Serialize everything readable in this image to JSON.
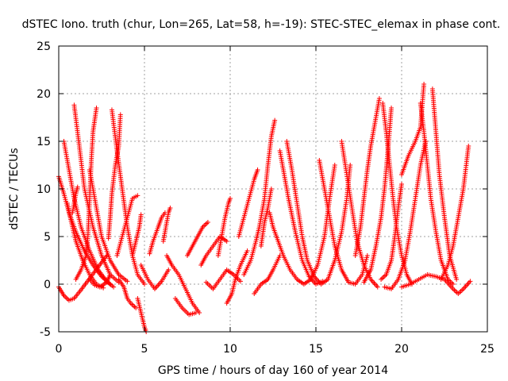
{
  "chart_data": {
    "type": "scatter",
    "title": "dSTEC Iono. truth (chur, Lon=265, Lat=58, h=-19): STEC-STEC_elemax in phase cont.",
    "xlabel": "GPS time / hours of day 160 of year 2014",
    "ylabel": "dSTEC  / TECUs",
    "xlim": [
      0,
      25
    ],
    "ylim": [
      -5,
      25
    ],
    "xticks": [
      0,
      5,
      10,
      15,
      20,
      25
    ],
    "yticks": [
      -5,
      0,
      5,
      10,
      15,
      20,
      25
    ],
    "x_tick_labels": [
      "0",
      "5",
      "10",
      "15",
      "20",
      "25"
    ],
    "y_tick_labels": [
      "-5",
      "0",
      "5",
      "10",
      "15",
      "20",
      "25"
    ],
    "grid": true,
    "marker": "+",
    "color": "#ff0000",
    "arcs": [
      [
        [
          0.0,
          11.3
        ],
        [
          0.3,
          9.5
        ],
        [
          0.6,
          7.5
        ],
        [
          1.0,
          5.5
        ],
        [
          1.5,
          3.5
        ],
        [
          2.0,
          2.0
        ],
        [
          2.5,
          0.8
        ],
        [
          3.0,
          0.0
        ]
      ],
      [
        [
          0.0,
          -0.3
        ],
        [
          0.3,
          -1.2
        ],
        [
          0.6,
          -1.7
        ],
        [
          0.9,
          -1.5
        ],
        [
          1.3,
          -0.6
        ],
        [
          1.8,
          0.6
        ],
        [
          2.3,
          1.8
        ],
        [
          2.8,
          3.0
        ]
      ],
      [
        [
          0.3,
          15.0
        ],
        [
          0.5,
          13.0
        ],
        [
          0.9,
          9.0
        ],
        [
          1.3,
          6.0
        ],
        [
          1.8,
          3.5
        ],
        [
          2.3,
          1.5
        ],
        [
          2.8,
          0.3
        ],
        [
          3.2,
          -0.3
        ]
      ],
      [
        [
          0.9,
          18.8
        ],
        [
          1.2,
          14.5
        ],
        [
          1.5,
          10.0
        ],
        [
          2.0,
          6.0
        ],
        [
          2.5,
          3.0
        ],
        [
          3.0,
          1.0
        ],
        [
          3.5,
          0.2
        ]
      ],
      [
        [
          0.5,
          8.5
        ],
        [
          0.7,
          6.8
        ],
        [
          1.0,
          4.5
        ],
        [
          1.4,
          2.5
        ],
        [
          1.8,
          1.0
        ],
        [
          2.2,
          0.0
        ],
        [
          2.6,
          -0.4
        ]
      ],
      [
        [
          0.8,
          7.5
        ],
        [
          0.9,
          8.5
        ],
        [
          1.0,
          9.5
        ],
        [
          1.1,
          10.2
        ]
      ],
      [
        [
          1.0,
          0.5
        ],
        [
          1.3,
          1.5
        ],
        [
          1.6,
          3.0
        ],
        [
          1.7,
          5.0
        ],
        [
          1.8,
          9.0
        ],
        [
          1.9,
          13.0
        ],
        [
          2.0,
          16.0
        ],
        [
          2.2,
          18.5
        ]
      ],
      [
        [
          1.8,
          12.0
        ],
        [
          2.1,
          9.0
        ],
        [
          2.5,
          5.0
        ],
        [
          3.0,
          2.5
        ],
        [
          3.5,
          1.0
        ],
        [
          4.0,
          0.3
        ]
      ],
      [
        [
          1.8,
          0.5
        ],
        [
          2.1,
          -0.1
        ],
        [
          2.4,
          -0.3
        ],
        [
          2.8,
          0.2
        ],
        [
          3.0,
          1.0
        ]
      ],
      [
        [
          3.1,
          18.3
        ],
        [
          3.4,
          14.0
        ],
        [
          3.7,
          10.0
        ],
        [
          4.0,
          6.0
        ],
        [
          4.3,
          3.0
        ],
        [
          4.6,
          1.0
        ],
        [
          5.0,
          0.0
        ]
      ],
      [
        [
          2.9,
          4.8
        ],
        [
          3.0,
          7.0
        ],
        [
          3.1,
          9.5
        ],
        [
          3.3,
          12.5
        ],
        [
          3.5,
          14.5
        ],
        [
          3.6,
          17.8
        ]
      ],
      [
        [
          3.4,
          3.0
        ],
        [
          3.7,
          5.0
        ],
        [
          4.0,
          7.0
        ],
        [
          4.3,
          9.0
        ],
        [
          4.6,
          9.3
        ]
      ],
      [
        [
          3.5,
          0.5
        ],
        [
          3.8,
          -0.3
        ],
        [
          4.0,
          -1.5
        ],
        [
          4.2,
          -2.0
        ],
        [
          4.5,
          -2.5
        ]
      ],
      [
        [
          4.6,
          -1.5
        ],
        [
          4.8,
          -3.0
        ],
        [
          5.0,
          -4.5
        ],
        [
          5.1,
          -5.0
        ]
      ],
      [
        [
          4.3,
          3.0
        ],
        [
          4.5,
          4.5
        ],
        [
          4.7,
          6.0
        ],
        [
          4.8,
          7.3
        ]
      ],
      [
        [
          4.8,
          2.0
        ],
        [
          5.2,
          0.5
        ],
        [
          5.6,
          -0.5
        ],
        [
          6.0,
          0.3
        ],
        [
          6.4,
          1.5
        ]
      ],
      [
        [
          5.3,
          3.2
        ],
        [
          5.5,
          4.5
        ],
        [
          5.8,
          6.0
        ],
        [
          6.0,
          7.0
        ],
        [
          6.2,
          7.5
        ]
      ],
      [
        [
          6.1,
          4.5
        ],
        [
          6.2,
          5.5
        ],
        [
          6.4,
          7.5
        ],
        [
          6.5,
          8.0
        ]
      ],
      [
        [
          6.3,
          3.0
        ],
        [
          6.6,
          2.0
        ],
        [
          7.0,
          1.0
        ],
        [
          7.4,
          -0.5
        ],
        [
          7.8,
          -2.0
        ],
        [
          8.2,
          -3.0
        ]
      ],
      [
        [
          6.8,
          -1.5
        ],
        [
          7.2,
          -2.5
        ],
        [
          7.6,
          -3.2
        ],
        [
          8.0,
          -3.0
        ]
      ],
      [
        [
          7.5,
          3.0
        ],
        [
          7.8,
          4.0
        ],
        [
          8.1,
          5.0
        ],
        [
          8.4,
          6.0
        ],
        [
          8.7,
          6.5
        ]
      ],
      [
        [
          8.3,
          2.0
        ],
        [
          8.6,
          3.0
        ],
        [
          9.0,
          4.0
        ],
        [
          9.4,
          5.0
        ],
        [
          9.8,
          4.5
        ]
      ],
      [
        [
          8.6,
          0.2
        ],
        [
          9.0,
          -0.5
        ],
        [
          9.4,
          0.5
        ],
        [
          9.8,
          1.5
        ],
        [
          10.2,
          1.0
        ],
        [
          10.6,
          0.3
        ]
      ],
      [
        [
          9.3,
          3.0
        ],
        [
          9.5,
          5.0
        ],
        [
          9.7,
          7.0
        ],
        [
          9.9,
          8.5
        ],
        [
          10.0,
          9.0
        ]
      ],
      [
        [
          9.8,
          -2.0
        ],
        [
          10.1,
          -1.0
        ],
        [
          10.3,
          0.5
        ],
        [
          10.6,
          2.0
        ],
        [
          11.0,
          3.5
        ]
      ],
      [
        [
          10.5,
          5.0
        ],
        [
          10.8,
          7.0
        ],
        [
          11.1,
          9.0
        ],
        [
          11.4,
          11.0
        ],
        [
          11.6,
          12.0
        ]
      ],
      [
        [
          10.8,
          1.0
        ],
        [
          11.2,
          2.5
        ],
        [
          11.5,
          4.5
        ],
        [
          11.7,
          6.0
        ],
        [
          12.0,
          9.0
        ],
        [
          12.2,
          12.5
        ],
        [
          12.4,
          15.5
        ],
        [
          12.6,
          17.2
        ]
      ],
      [
        [
          11.8,
          4.0
        ],
        [
          12.0,
          6.5
        ],
        [
          12.2,
          8.0
        ],
        [
          12.4,
          10.0
        ]
      ],
      [
        [
          11.4,
          -1.0
        ],
        [
          11.8,
          0.0
        ],
        [
          12.2,
          0.5
        ],
        [
          12.5,
          1.5
        ],
        [
          12.9,
          3.0
        ]
      ],
      [
        [
          12.3,
          7.5
        ],
        [
          12.5,
          6.0
        ],
        [
          12.8,
          4.5
        ],
        [
          13.1,
          3.0
        ],
        [
          13.5,
          1.5
        ],
        [
          13.9,
          0.5
        ],
        [
          14.3,
          0.0
        ],
        [
          14.7,
          0.5
        ],
        [
          15.1,
          2.0
        ],
        [
          15.5,
          5.0
        ],
        [
          15.8,
          9.0
        ],
        [
          16.1,
          12.5
        ]
      ],
      [
        [
          12.9,
          14.0
        ],
        [
          13.1,
          12.0
        ],
        [
          13.4,
          9.0
        ],
        [
          13.8,
          5.5
        ],
        [
          14.2,
          2.5
        ],
        [
          14.6,
          0.8
        ],
        [
          15.0,
          0.0
        ],
        [
          15.4,
          0.3
        ]
      ],
      [
        [
          13.3,
          15.0
        ],
        [
          13.6,
          12.0
        ],
        [
          13.9,
          8.5
        ],
        [
          14.2,
          5.0
        ],
        [
          14.5,
          2.5
        ],
        [
          14.9,
          0.8
        ],
        [
          15.3,
          0.0
        ],
        [
          15.7,
          0.5
        ],
        [
          16.1,
          2.5
        ],
        [
          16.5,
          5.5
        ],
        [
          16.8,
          9.0
        ],
        [
          17.0,
          12.5
        ]
      ],
      [
        [
          15.2,
          13.0
        ],
        [
          15.5,
          10.0
        ],
        [
          15.8,
          7.0
        ],
        [
          16.1,
          4.0
        ],
        [
          16.5,
          1.5
        ],
        [
          16.9,
          0.2
        ],
        [
          17.3,
          0.0
        ],
        [
          17.7,
          1.0
        ],
        [
          18.0,
          3.0
        ]
      ],
      [
        [
          16.5,
          15.0
        ],
        [
          16.8,
          11.5
        ],
        [
          17.1,
          8.0
        ],
        [
          17.4,
          4.5
        ],
        [
          17.8,
          2.0
        ],
        [
          18.2,
          0.5
        ],
        [
          18.6,
          -0.3
        ]
      ],
      [
        [
          17.3,
          3.0
        ],
        [
          17.6,
          6.0
        ],
        [
          17.8,
          9.0
        ],
        [
          18.0,
          12.0
        ],
        [
          18.2,
          14.5
        ],
        [
          18.5,
          17.5
        ],
        [
          18.7,
          19.5
        ]
      ],
      [
        [
          17.8,
          0.2
        ],
        [
          18.2,
          1.5
        ],
        [
          18.5,
          4.0
        ],
        [
          18.8,
          7.0
        ],
        [
          19.0,
          10.0
        ],
        [
          19.2,
          14.0
        ],
        [
          19.4,
          18.5
        ]
      ],
      [
        [
          18.9,
          19.0
        ],
        [
          19.1,
          16.0
        ],
        [
          19.3,
          12.5
        ],
        [
          19.5,
          9.0
        ],
        [
          19.7,
          6.0
        ],
        [
          20.0,
          3.0
        ],
        [
          20.3,
          1.0
        ],
        [
          20.6,
          0.0
        ]
      ],
      [
        [
          18.8,
          0.5
        ],
        [
          19.1,
          1.0
        ],
        [
          19.4,
          2.5
        ],
        [
          19.6,
          5.0
        ],
        [
          19.8,
          8.0
        ],
        [
          20.0,
          10.5
        ]
      ],
      [
        [
          19.0,
          -0.3
        ],
        [
          19.4,
          -0.5
        ],
        [
          19.8,
          0.5
        ],
        [
          20.2,
          2.5
        ],
        [
          20.5,
          5.5
        ],
        [
          20.8,
          9.0
        ],
        [
          21.1,
          12.5
        ],
        [
          21.4,
          15.0
        ]
      ],
      [
        [
          20.0,
          11.5
        ],
        [
          20.4,
          13.5
        ],
        [
          20.8,
          15.0
        ],
        [
          21.1,
          16.5
        ],
        [
          21.3,
          21.0
        ]
      ],
      [
        [
          21.1,
          19.0
        ],
        [
          21.3,
          16.0
        ],
        [
          21.5,
          12.5
        ],
        [
          21.7,
          9.0
        ],
        [
          22.0,
          5.5
        ],
        [
          22.3,
          2.5
        ],
        [
          22.7,
          0.5
        ],
        [
          23.0,
          0.0
        ]
      ],
      [
        [
          21.8,
          20.5
        ],
        [
          22.0,
          16.0
        ],
        [
          22.2,
          11.5
        ],
        [
          22.5,
          7.0
        ],
        [
          22.8,
          3.0
        ],
        [
          23.2,
          0.5
        ]
      ],
      [
        [
          22.3,
          0.5
        ],
        [
          22.7,
          2.0
        ],
        [
          23.0,
          4.0
        ],
        [
          23.3,
          7.0
        ],
        [
          23.6,
          10.0
        ],
        [
          23.9,
          14.5
        ]
      ],
      [
        [
          20.0,
          -0.3
        ],
        [
          20.5,
          0.0
        ],
        [
          21.0,
          0.5
        ],
        [
          21.5,
          1.0
        ],
        [
          22.0,
          0.8
        ],
        [
          22.5,
          0.5
        ],
        [
          23.0,
          -0.5
        ],
        [
          23.3,
          -1.0
        ],
        [
          23.6,
          -0.5
        ],
        [
          24.0,
          0.3
        ]
      ]
    ]
  }
}
